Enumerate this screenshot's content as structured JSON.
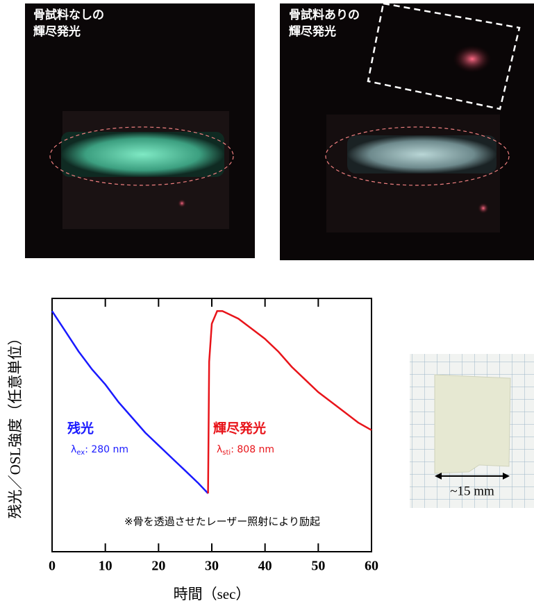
{
  "photos": [
    {
      "caption": [
        "骨試料なしの",
        "輝尽発光"
      ]
    },
    {
      "caption": [
        "骨試料ありの",
        "輝尽発光"
      ]
    }
  ],
  "chart_data": {
    "type": "line",
    "x_label": "時間（sec）",
    "y_label": "残光／OSL強度（任意単位）",
    "xlim": [
      0,
      60
    ],
    "xticks": [
      0,
      10,
      20,
      30,
      40,
      50,
      60
    ],
    "ylim": [
      0,
      1
    ],
    "series": [
      {
        "name": "残光",
        "color": "#1a1aff",
        "sub_prefix": "λ",
        "sub": "ex",
        "sub_suffix": ": 280 nm",
        "x": [
          0,
          2.5,
          5,
          7.5,
          10,
          12.5,
          15,
          17.5,
          20,
          22.5,
          25,
          27.5,
          29.3
        ],
        "values": [
          0.95,
          0.87,
          0.79,
          0.72,
          0.66,
          0.59,
          0.53,
          0.47,
          0.42,
          0.37,
          0.32,
          0.27,
          0.23
        ]
      },
      {
        "name": "輝尽発光",
        "color": "#e8141a",
        "sub_prefix": "λ",
        "sub": "sti",
        "sub_suffix": ": 808 nm",
        "x": [
          29.3,
          29.5,
          30,
          31,
          32,
          33,
          35,
          37.5,
          40,
          42.5,
          45,
          47.5,
          50,
          52.5,
          55,
          57.5,
          60
        ],
        "values": [
          0.23,
          0.75,
          0.9,
          0.95,
          0.95,
          0.94,
          0.92,
          0.88,
          0.84,
          0.79,
          0.73,
          0.68,
          0.63,
          0.59,
          0.55,
          0.51,
          0.48
        ]
      }
    ],
    "note": "※骨を透過させたレーザー照射により励起"
  },
  "sample_photo": {
    "scale_label": "~15 mm"
  }
}
